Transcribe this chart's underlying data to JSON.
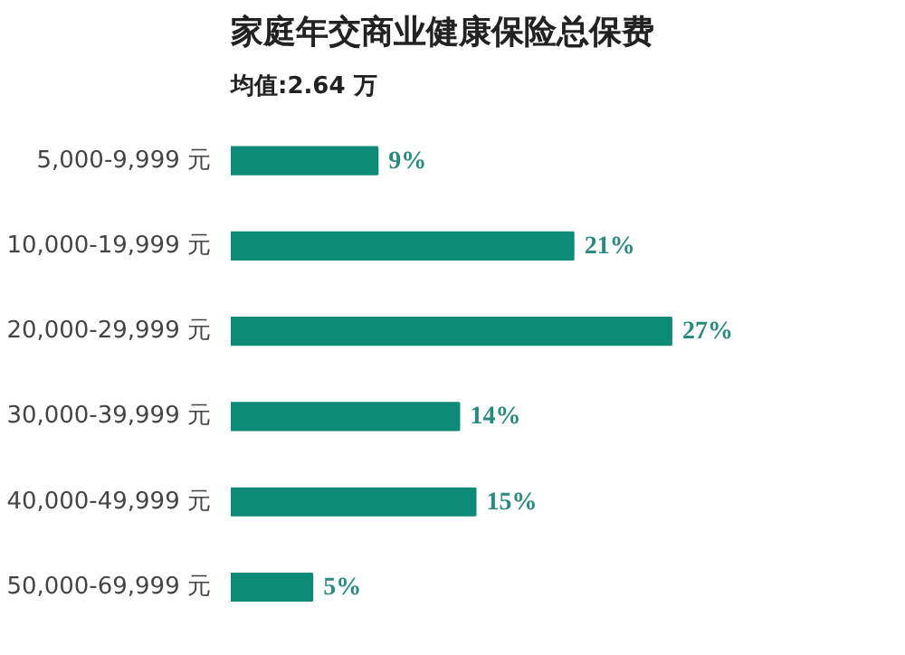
{
  "chart_data": {
    "type": "bar",
    "orientation": "horizontal",
    "title": "家庭年交商业健康保险总保费",
    "subtitle": "均值:2.64 万",
    "categories": [
      "5,000-9,999 元",
      "10,000-19,999 元",
      "20,000-29,999 元",
      "30,000-39,999 元",
      "40,000-49,999 元",
      "50,000-69,999 元"
    ],
    "values": [
      9,
      21,
      27,
      14,
      15,
      5
    ],
    "color": "#0e8a78",
    "tick_labels": "y",
    "grid": false,
    "value_labels": [
      "9%",
      "21%",
      "27%",
      "14%",
      "15%",
      "5%"
    ]
  }
}
